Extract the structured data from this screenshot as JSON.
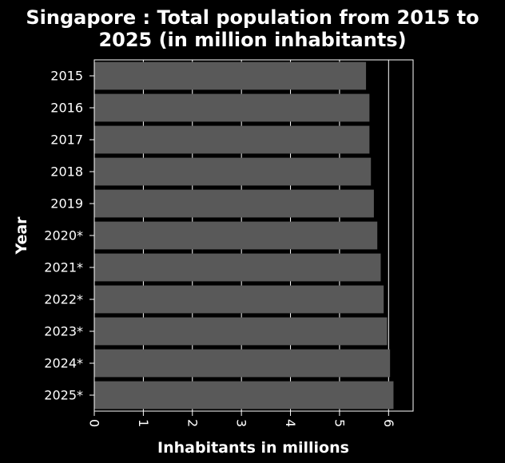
{
  "chart_data": {
    "type": "bar",
    "orientation": "horizontal",
    "title_lines": [
      "Singapore : Total population from 2015 to",
      "2025 (in million inhabitants)"
    ],
    "xlabel": "Inhabitants in millions",
    "ylabel": "Year",
    "categories": [
      "2015",
      "2016",
      "2017",
      "2018",
      "2019",
      "2020*",
      "2021*",
      "2022*",
      "2023*",
      "2024*",
      "2025*"
    ],
    "values": [
      5.54,
      5.61,
      5.61,
      5.64,
      5.7,
      5.77,
      5.84,
      5.9,
      5.97,
      6.03,
      6.1
    ],
    "xticks": [
      0,
      1,
      2,
      3,
      4,
      5,
      6
    ],
    "xlim": [
      0,
      6.5
    ],
    "grid": "vertical",
    "colors": {
      "background": "#000000",
      "bar": "#595959",
      "text": "#ffffff",
      "grid": "#ffffff"
    }
  }
}
